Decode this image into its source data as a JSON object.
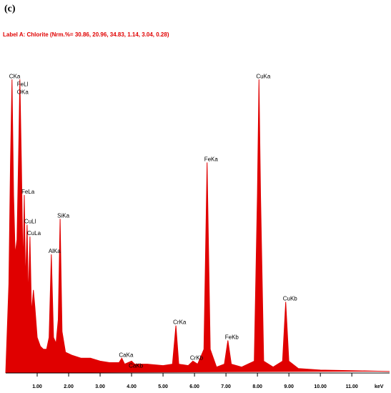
{
  "chart_data": {
    "type": "spectrum",
    "panel_label": "(c)",
    "title": "Label A: Chlorite (Nrm.%= 30.86, 20.96, 34.83, 1.14, 3.04, 0.28)",
    "x_label": "keV",
    "color": "#e00000",
    "x": [
      0.0,
      0.1,
      0.15,
      0.2,
      0.25,
      0.3,
      0.36,
      0.42,
      0.45,
      0.5,
      0.55,
      0.59,
      0.63,
      0.68,
      0.72,
      0.77,
      0.82,
      0.88,
      0.93,
      1.0,
      1.1,
      1.2,
      1.3,
      1.38,
      1.45,
      1.52,
      1.6,
      1.67,
      1.73,
      1.79,
      1.9,
      2.1,
      2.4,
      2.7,
      3.0,
      3.3,
      3.6,
      3.69,
      3.78,
      4.0,
      4.1,
      4.5,
      5.0,
      5.3,
      5.41,
      5.5,
      5.8,
      5.95,
      6.1,
      6.3,
      6.4,
      6.5,
      6.7,
      6.95,
      7.06,
      7.17,
      7.5,
      7.9,
      8.0,
      8.05,
      8.1,
      8.2,
      8.5,
      8.8,
      8.9,
      9.0,
      9.3,
      10.0,
      11.0,
      12.2
    ],
    "values": [
      0,
      30,
      70,
      99,
      60,
      40,
      45,
      80,
      99,
      70,
      35,
      60,
      30,
      50,
      25,
      46,
      20,
      28,
      22,
      12,
      9,
      8,
      8,
      12,
      40,
      12,
      10,
      18,
      52,
      14,
      7,
      6,
      5,
      5,
      4,
      3.5,
      3.5,
      5,
      3,
      4,
      3,
      3,
      2.5,
      3,
      16,
      3,
      2.5,
      4,
      3,
      8,
      71,
      8,
      2,
      3,
      11,
      3,
      2,
      4,
      60,
      99,
      60,
      4,
      2,
      4,
      24,
      4,
      1.5,
      1,
      0.8,
      0.5
    ],
    "annotations": [
      {
        "text": "CKa",
        "x": 0.2
      },
      {
        "text": "FeLl",
        "x": 0.45
      },
      {
        "text": "OKa",
        "x": 0.45
      },
      {
        "text": "FeLa",
        "x": 0.59
      },
      {
        "text": "CuLl",
        "x": 0.68
      },
      {
        "text": "CuLa",
        "x": 0.77
      },
      {
        "text": "AlKa",
        "x": 1.45
      },
      {
        "text": "SiKa",
        "x": 1.73
      },
      {
        "text": "CaKa",
        "x": 3.69
      },
      {
        "text": "CaKb",
        "x": 4.0
      },
      {
        "text": "CrKa",
        "x": 5.41
      },
      {
        "text": "CrKb",
        "x": 5.95
      },
      {
        "text": "FeKa",
        "x": 6.4
      },
      {
        "text": "FeKb",
        "x": 7.06
      },
      {
        "text": "CuKa",
        "x": 8.05
      },
      {
        "text": "CuKb",
        "x": 8.9
      }
    ],
    "xlim": [
      0,
      12.2
    ],
    "ylim": [
      0,
      100
    ],
    "xticks": [
      {
        "value": 1,
        "label": "1.00"
      },
      {
        "value": 2,
        "label": "2.00"
      },
      {
        "value": 3,
        "label": "3.00"
      },
      {
        "value": 4,
        "label": "4.00"
      },
      {
        "value": 5,
        "label": "5.00"
      },
      {
        "value": 6,
        "label": "6.00"
      },
      {
        "value": 7,
        "label": "7.00"
      },
      {
        "value": 8,
        "label": "8.00"
      },
      {
        "value": 9,
        "label": "9.00"
      },
      {
        "value": 10,
        "label": "10.00"
      },
      {
        "value": 11,
        "label": "11.00"
      }
    ]
  }
}
